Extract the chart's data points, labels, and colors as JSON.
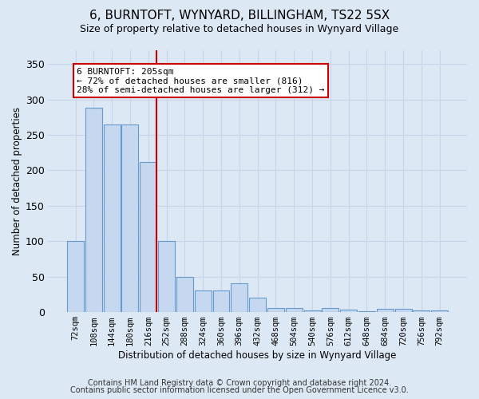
{
  "title1": "6, BURNTOFT, WYNYARD, BILLINGHAM, TS22 5SX",
  "title2": "Size of property relative to detached houses in Wynyard Village",
  "xlabel": "Distribution of detached houses by size in Wynyard Village",
  "ylabel": "Number of detached properties",
  "footnote1": "Contains HM Land Registry data © Crown copyright and database right 2024.",
  "footnote2": "Contains public sector information licensed under the Open Government Licence v3.0.",
  "bin_labels": [
    "72sqm",
    "108sqm",
    "144sqm",
    "180sqm",
    "216sqm",
    "252sqm",
    "288sqm",
    "324sqm",
    "360sqm",
    "396sqm",
    "432sqm",
    "468sqm",
    "504sqm",
    "540sqm",
    "576sqm",
    "612sqm",
    "648sqm",
    "684sqm",
    "720sqm",
    "756sqm",
    "792sqm"
  ],
  "bar_values": [
    100,
    288,
    265,
    265,
    212,
    100,
    50,
    30,
    30,
    40,
    20,
    6,
    6,
    2,
    6,
    3,
    1,
    4,
    4,
    2,
    2
  ],
  "bar_color": "#c5d8f0",
  "bar_edge_color": "#6699cc",
  "vline_x": 4.45,
  "vline_color": "#cc0000",
  "annotation_line1": "6 BURNTOFT: 205sqm",
  "annotation_line2": "← 72% of detached houses are smaller (816)",
  "annotation_line3": "28% of semi-detached houses are larger (312) →",
  "annotation_box_facecolor": "#ffffff",
  "annotation_box_edgecolor": "#cc0000",
  "ylim": [
    0,
    370
  ],
  "yticks": [
    0,
    50,
    100,
    150,
    200,
    250,
    300,
    350
  ],
  "grid_color": "#c8d4e8",
  "bg_color": "#dde8f5",
  "title1_fontsize": 11,
  "title2_fontsize": 9
}
